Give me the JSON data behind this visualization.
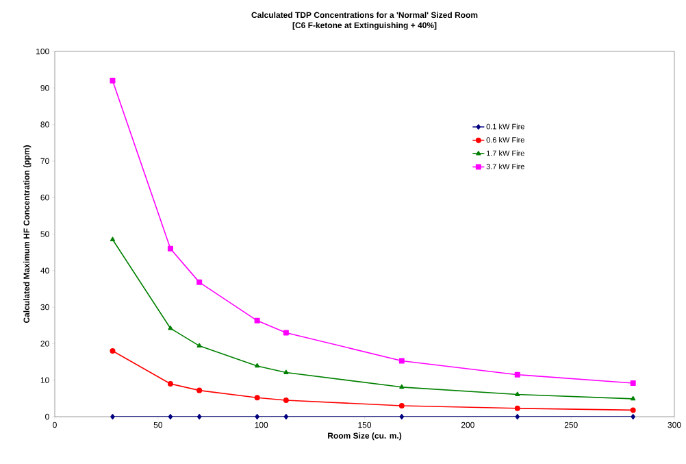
{
  "chart_data": {
    "type": "line",
    "title": "Calculated TDP Concentrations for a 'Normal' Sized Room",
    "subtitle": "[C6 F-ketone at Extinguishing + 40%]",
    "xlabel": "Room Size (cu. m.)",
    "ylabel": "Calculated Maximum HF Concentration (ppm)",
    "x": [
      28,
      56,
      70,
      98,
      112,
      168,
      224,
      280
    ],
    "series": [
      {
        "name": "0.1 kW Fire",
        "color": "#000080",
        "marker": "diamond",
        "values": [
          0,
          0,
          0,
          0,
          0,
          0,
          0,
          0
        ]
      },
      {
        "name": "0.6 kW Fire",
        "color": "#ff0000",
        "marker": "circle",
        "values": [
          18,
          9,
          7.2,
          5.2,
          4.5,
          3,
          2.3,
          1.8
        ]
      },
      {
        "name": "1.7 kW Fire",
        "color": "#008000",
        "marker": "triangle",
        "values": [
          48.5,
          24.2,
          19.4,
          13.9,
          12.1,
          8.1,
          6.1,
          4.9
        ]
      },
      {
        "name": "3.7 kW Fire",
        "color": "#ff00ff",
        "marker": "square",
        "values": [
          92,
          46,
          36.8,
          26.3,
          23,
          15.3,
          11.5,
          9.2
        ]
      }
    ],
    "xlim": [
      0,
      300
    ],
    "xticks": [
      0,
      50,
      100,
      150,
      200,
      250,
      300
    ],
    "ylim": [
      0,
      100
    ],
    "yticks": [
      0,
      10,
      20,
      30,
      40,
      50,
      60,
      70,
      80,
      90,
      100
    ],
    "grid": false,
    "legend": "top right",
    "line_style": "solid"
  }
}
